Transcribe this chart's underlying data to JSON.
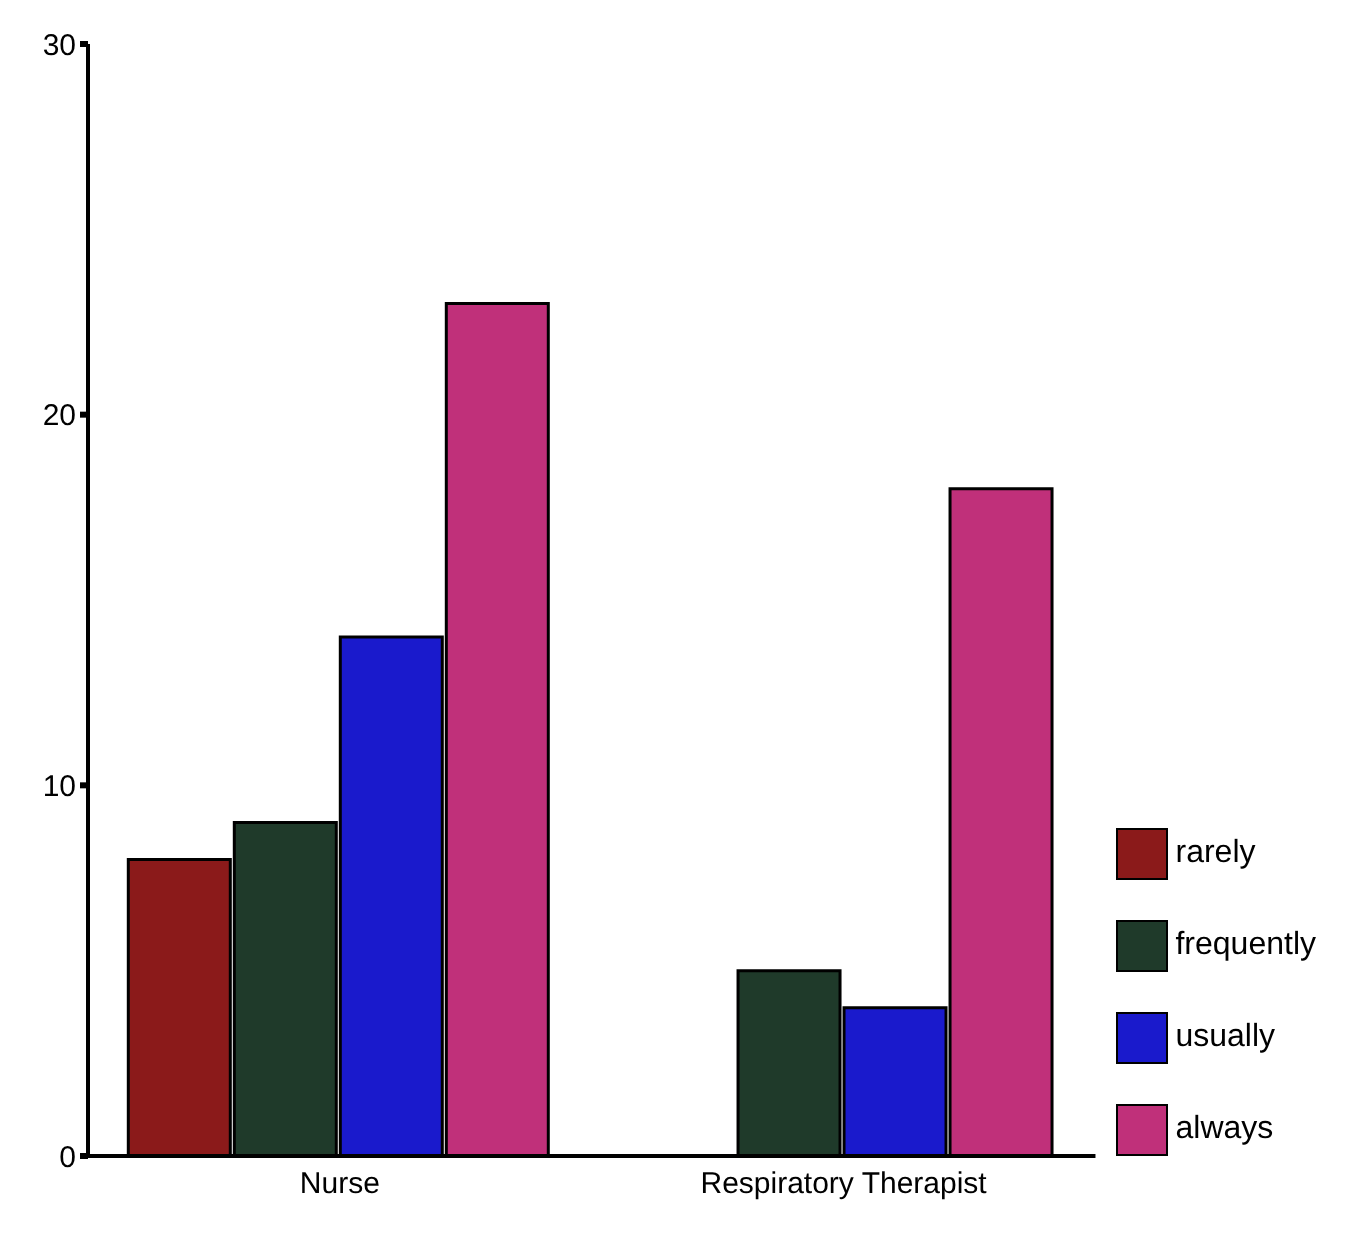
{
  "chart_data": {
    "type": "bar",
    "categories": [
      "Nurse",
      "Respiratory Therapist"
    ],
    "series": [
      {
        "name": "rarely",
        "color": "#8b1a1a",
        "values": [
          8,
          0
        ]
      },
      {
        "name": "frequently",
        "color": "#1f3a2a",
        "values": [
          9,
          5
        ]
      },
      {
        "name": "usually",
        "color": "#1a1acc",
        "values": [
          14,
          4
        ]
      },
      {
        "name": "always",
        "color": "#c0307a",
        "values": [
          23,
          18
        ]
      }
    ],
    "ylim": [
      0,
      30
    ],
    "yticks": [
      0,
      10,
      20,
      30
    ],
    "grid": false,
    "legend": "right"
  }
}
